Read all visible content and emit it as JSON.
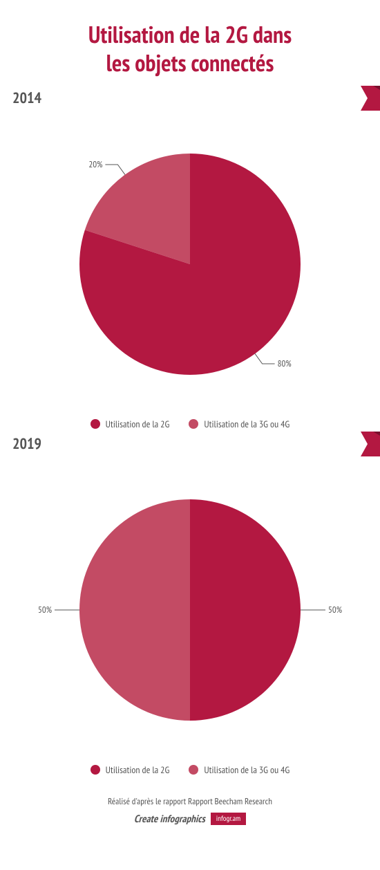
{
  "colors": {
    "primary": "#b31841",
    "secondary": "#c34b64",
    "text": "#555555",
    "background": "#ffffff",
    "ribbon_shadow": "#7a102d",
    "footer_tag_bg": "#b31841"
  },
  "title": {
    "line1": "Utilisation de la 2G dans",
    "line2": "les objets connectés",
    "fontsize": 34,
    "color": "#b31841"
  },
  "sections": [
    {
      "year": "2014",
      "year_fontsize": 22,
      "chart": {
        "type": "pie",
        "radius": 160,
        "background_color": "#ffffff",
        "slices": [
          {
            "label": "Utilisation de la 2G",
            "value": 80,
            "percent_label": "80%",
            "color": "#b31841"
          },
          {
            "label": "Utilisation de la 3G ou 4G",
            "value": 20,
            "percent_label": "20%",
            "color": "#c34b64"
          }
        ],
        "start_angle_deg": 0,
        "label_fontsize": 13
      },
      "legend": [
        {
          "swatch": "#b31841",
          "label": "Utilisation de la 2G"
        },
        {
          "swatch": "#c34b64",
          "label": "Utilisation de la 3G ou 4G"
        }
      ]
    },
    {
      "year": "2019",
      "year_fontsize": 22,
      "chart": {
        "type": "pie",
        "radius": 160,
        "background_color": "#ffffff",
        "slices": [
          {
            "label": "Utilisation de la 2G",
            "value": 50,
            "percent_label": "50%",
            "color": "#b31841"
          },
          {
            "label": "Utilisation de la 3G ou 4G",
            "value": 50,
            "percent_label": "50%",
            "color": "#c34b64"
          }
        ],
        "start_angle_deg": 0,
        "label_fontsize": 13
      },
      "legend": [
        {
          "swatch": "#b31841",
          "label": "Utilisation de la 2G"
        },
        {
          "swatch": "#c34b64",
          "label": "Utilisation de la 3G ou 4G"
        }
      ]
    }
  ],
  "footer": {
    "source": "Réalisé d'après le rapport Rapport Beecham Research",
    "cta": "Create infographics",
    "tag": "infogr.am"
  }
}
